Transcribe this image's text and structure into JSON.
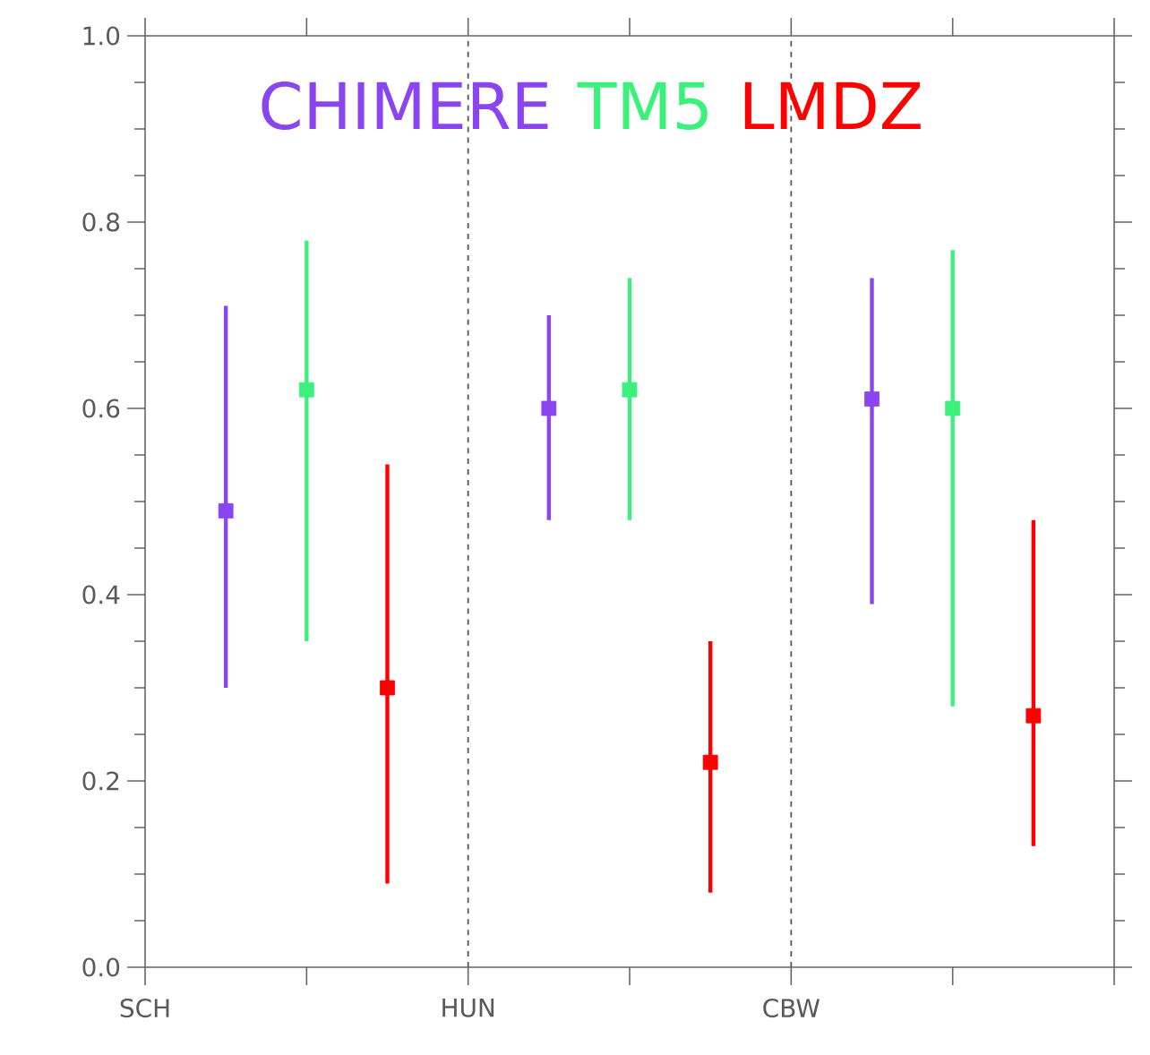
{
  "chart_data": {
    "type": "scatter",
    "categories": [
      "SCH",
      null,
      null,
      null,
      "HUN",
      null,
      null,
      null,
      "CBW",
      null,
      null,
      null,
      null
    ],
    "ylim": [
      0,
      1
    ],
    "yticks": [
      {
        "value": 0,
        "label": "0.0"
      },
      {
        "value": 0.2,
        "label": "0.2"
      },
      {
        "value": 0.4,
        "label": "0.4"
      },
      {
        "value": 0.6,
        "label": "0.6"
      },
      {
        "value": 0.8,
        "label": "0.8"
      },
      {
        "value": 1,
        "label": "1.0"
      }
    ],
    "series": [
      {
        "name": "CHIMERE",
        "color": "#8a44f0",
        "values": [
          null,
          0.49,
          null,
          null,
          null,
          0.6,
          null,
          null,
          null,
          0.61,
          null,
          null,
          null
        ],
        "errors": [
          null,
          [
            0.3,
            0.71
          ],
          null,
          null,
          null,
          [
            0.48,
            0.7
          ],
          null,
          null,
          null,
          [
            0.39,
            0.74
          ],
          null,
          null,
          null
        ]
      },
      {
        "name": "TM5",
        "color": "#3cf07c",
        "values": [
          null,
          null,
          0.62,
          null,
          null,
          null,
          0.62,
          null,
          null,
          null,
          0.6,
          null,
          null
        ],
        "errors": [
          null,
          null,
          [
            0.35,
            0.78
          ],
          null,
          null,
          null,
          [
            0.48,
            0.74
          ],
          null,
          null,
          null,
          [
            0.28,
            0.77
          ],
          null,
          null
        ]
      },
      {
        "name": "LMDZ",
        "color": "#ff0000",
        "values": [
          null,
          null,
          null,
          0.3,
          null,
          null,
          null,
          0.22,
          null,
          null,
          null,
          0.27,
          null
        ],
        "errors": [
          null,
          null,
          null,
          [
            0.09,
            0.54
          ],
          null,
          null,
          null,
          [
            0.08,
            0.35
          ],
          null,
          null,
          null,
          [
            0.13,
            0.48
          ],
          null
        ]
      }
    ],
    "ref_lines": [
      {
        "axis": "x",
        "value": "HUN",
        "color": "#555555",
        "line_style": "dashed"
      },
      {
        "axis": "x",
        "value": "CBW",
        "color": "#555555",
        "line_style": "dashed"
      }
    ],
    "marker": "square",
    "line_style": "solid",
    "grid": false,
    "legend": "top"
  }
}
